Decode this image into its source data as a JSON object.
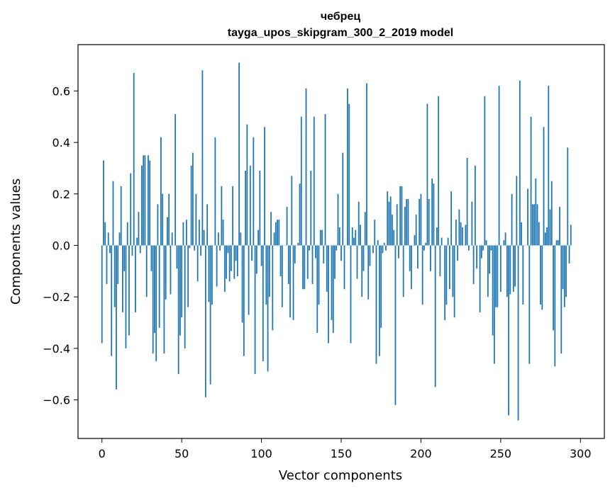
{
  "chart_data": {
    "type": "bar",
    "title": "чебрец",
    "subtitle": "tayga_upos_skipgram_300_2_2019 model",
    "xlabel": "Vector components",
    "ylabel": "Components values",
    "xlim": [
      -15,
      315
    ],
    "ylim": [
      -0.75,
      0.78
    ],
    "xticks": [
      0,
      50,
      100,
      150,
      200,
      250,
      300
    ],
    "yticks": [
      -0.6,
      -0.4,
      -0.2,
      0.0,
      0.2,
      0.4,
      0.6
    ],
    "ytick_labels": [
      "−0.6",
      "−0.4",
      "−0.2",
      "0.0",
      "0.2",
      "0.4",
      "0.6"
    ],
    "bar_color": "#1f77b4",
    "grid": false,
    "values": [
      -0.38,
      0.33,
      0.09,
      -0.15,
      0.05,
      -0.03,
      -0.43,
      0.25,
      -0.24,
      -0.56,
      -0.15,
      0.05,
      0.23,
      -0.26,
      -0.1,
      -0.4,
      0.09,
      -0.35,
      0.28,
      -0.04,
      0.67,
      -0.26,
      0.03,
      0.13,
      -0.03,
      0.31,
      0.35,
      0.35,
      -0.2,
      0.35,
      0.33,
      -0.1,
      -0.42,
      -0.34,
      -0.45,
      0.16,
      -0.32,
      0.42,
      0.2,
      -0.42,
      -0.21,
      0.11,
      0.2,
      -0.19,
      0.05,
      0.0,
      0.51,
      -0.09,
      -0.5,
      -0.35,
      -0.28,
      0.09,
      -0.4,
      0.1,
      -0.24,
      -0.01,
      0.31,
      0.36,
      -0.02,
      0.2,
      -0.14,
      0.1,
      -0.04,
      0.68,
      0.06,
      -0.59,
      0.16,
      -0.22,
      -0.54,
      -0.23,
      0.0,
      0.42,
      -0.16,
      0.05,
      -0.02,
      0.23,
      0.1,
      -0.18,
      -0.13,
      -0.03,
      -0.14,
      -0.1,
      0.23,
      -0.13,
      -0.06,
      -0.12,
      0.71,
      0.05,
      -0.3,
      -0.43,
      0.29,
      0.47,
      -0.27,
      0.31,
      -0.06,
      0.42,
      -0.5,
      -0.11,
      0.06,
      0.29,
      -0.08,
      -0.45,
      0.46,
      -0.23,
      -0.49,
      -0.2,
      0.13,
      -0.33,
      0.05,
      0.09,
      0.1,
      0.1,
      -0.12,
      -0.24,
      0.0,
      0.0,
      0.15,
      -0.15,
      -0.28,
      0.27,
      -0.29,
      -0.07,
      0.0,
      0.01,
      0.24,
      0.5,
      -0.17,
      -0.17,
      0.61,
      -0.13,
      -0.02,
      0.29,
      -0.15,
      0.5,
      -0.05,
      -0.34,
      -0.23,
      0.06,
      0.06,
      -0.07,
      0.51,
      -0.18,
      -0.38,
      0.0,
      -0.29,
      -0.34,
      -0.13,
      -0.02,
      0.2,
      0.07,
      -0.06,
      0.36,
      -0.17,
      0.0,
      0.61,
      0.55,
      -0.38,
      0.07,
      0.03,
      0.06,
      -0.13,
      0.17,
      0.08,
      -0.2,
      -0.1,
      0.13,
      0.63,
      -0.21,
      -0.08,
      0.0,
      -0.03,
      0.1,
      -0.46,
      0.02,
      -0.43,
      -0.32,
      -0.03,
      0.01,
      -0.02,
      0.21,
      0.17,
      0.19,
      0.12,
      0.06,
      -0.62,
      0.16,
      -0.05,
      0.23,
      0.23,
      -0.2,
      0.15,
      0.18,
      0.18,
      -0.1,
      -0.17,
      0.0,
      0.04,
      0.12,
      -0.09,
      0.18,
      0.2,
      -0.23,
      -0.02,
      0.01,
      0.55,
      0.18,
      -0.1,
      0.26,
      0.24,
      -0.55,
      0.07,
      0.58,
      -0.12,
      0.03,
      0.0,
      -0.29,
      -0.23,
      0.03,
      -0.17,
      0.21,
      -0.2,
      -0.28,
      0.1,
      -0.06,
      0.14,
      0.09,
      0.07,
      0.0,
      0.08,
      0.34,
      -0.02,
      0.0,
      0.17,
      -0.15,
      0.31,
      -0.09,
      0.0,
      -0.26,
      -0.05,
      -0.02,
      0.58,
      0.02,
      -0.2,
      -0.11,
      -0.02,
      -0.35,
      -0.46,
      -0.24,
      -0.24,
      0.62,
      -0.18,
      0.0,
      0.02,
      0.05,
      -0.2,
      -0.66,
      -0.19,
      0.2,
      -0.18,
      -0.16,
      0.27,
      -0.68,
      0.64,
      0.09,
      -0.23,
      0.0,
      0.0,
      0.22,
      -0.46,
      0.5,
      0.16,
      0.16,
      0.26,
      0.16,
      0.09,
      -0.23,
      -0.25,
      0.46,
      0.05,
      0.07,
      0.62,
      0.14,
      0.25,
      -0.33,
      -0.47,
      0.02,
      0.02,
      0.15,
      -0.42,
      -0.17,
      -0.24,
      -0.2,
      0.38,
      -0.07,
      0.08
    ]
  }
}
